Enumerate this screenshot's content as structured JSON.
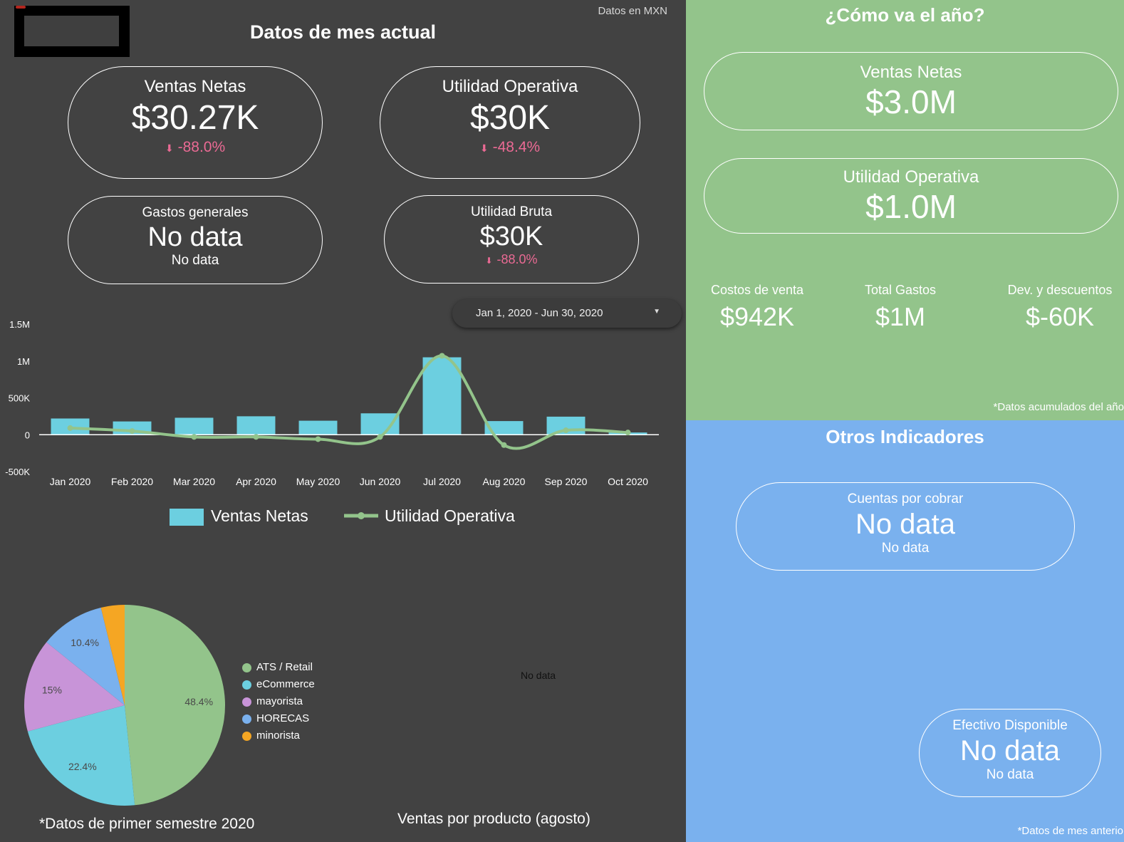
{
  "header": {
    "currency_note": "Datos en MXN",
    "title": "Datos de mes actual"
  },
  "kpis": {
    "ventas": {
      "label": "Ventas Netas",
      "value": "$30.27K",
      "delta": "-88.0%"
    },
    "utilidad_op": {
      "label": "Utilidad Operativa",
      "value": "$30K",
      "delta": "-48.4%"
    },
    "gastos": {
      "label": "Gastos generales",
      "value": "No data",
      "delta": "No data"
    },
    "utilidad_bruta": {
      "label": "Utilidad Bruta",
      "value": "$30K",
      "delta": "-88.0%"
    }
  },
  "date_range": {
    "value": "Jan 1, 2020 - Jun 30, 2020"
  },
  "combo_legend": {
    "bars": "Ventas Netas",
    "line": "Utilidad Operativa"
  },
  "chart_data": [
    {
      "type": "bar",
      "categories": [
        "Jan 2020",
        "Feb 2020",
        "Mar 2020",
        "Apr 2020",
        "May 2020",
        "Jun 2020",
        "Jul 2020",
        "Aug 2020",
        "Sep 2020",
        "Oct 2020"
      ],
      "y_ticks": [
        "1.5M",
        "1M",
        "500K",
        "0",
        "-500K"
      ],
      "ylim": [
        -500000,
        1500000
      ],
      "series": [
        {
          "name": "Ventas Netas",
          "type": "bar",
          "color": "#6ccfe0",
          "values": [
            220000,
            180000,
            230000,
            250000,
            190000,
            290000,
            1050000,
            185000,
            245000,
            30000
          ]
        },
        {
          "name": "Utilidad Operativa",
          "type": "line",
          "color": "#93c48b",
          "values": [
            90000,
            50000,
            -30000,
            -30000,
            -60000,
            -30000,
            1070000,
            -140000,
            60000,
            30000
          ]
        }
      ]
    },
    {
      "type": "pie",
      "slices": [
        {
          "label": "ATS / Retail",
          "value": 48.4,
          "text": "48.4%",
          "color": "#93c48b"
        },
        {
          "label": "eCommerce",
          "value": 22.4,
          "text": "22.4%",
          "color": "#6ccfe0"
        },
        {
          "label": "mayorista",
          "value": 15.0,
          "text": "15%",
          "color": "#c894d8"
        },
        {
          "label": "HORECAS",
          "value": 10.4,
          "text": "10.4%",
          "color": "#7ab1ee"
        },
        {
          "label": "minorista",
          "value": 3.8,
          "text": "",
          "color": "#f5a623"
        }
      ]
    }
  ],
  "pie_caption": "*Datos de primer semestre 2020",
  "product_chart": {
    "nodata": "No data",
    "caption": "Ventas por producto (agosto)"
  },
  "year": {
    "title": "¿Cómo va el año?",
    "ventas": {
      "label": "Ventas Netas",
      "value": "$3.0M"
    },
    "utilidad": {
      "label": "Utilidad Operativa",
      "value": "$1.0M"
    },
    "costos": {
      "label": "Costos de venta",
      "value": "$942K"
    },
    "gastos": {
      "label": "Total Gastos",
      "value": "$1M"
    },
    "devs": {
      "label": "Dev. y descuentos",
      "value": "$-60K"
    },
    "note": "*Datos acumulados del año"
  },
  "otros": {
    "title": "Otros Indicadores",
    "cuentas": {
      "label": "Cuentas por cobrar",
      "value": "No data",
      "sub": "No data"
    },
    "efectivo": {
      "label": "Efectivo Disponible",
      "value": "No data",
      "sub": "No data"
    },
    "note": "*Datos de mes anterior"
  },
  "colors": {
    "accent_negative": "#ea6a94",
    "green_panel": "#93c48b",
    "blue_panel": "#7ab1ee",
    "dark_bg": "#424242"
  }
}
